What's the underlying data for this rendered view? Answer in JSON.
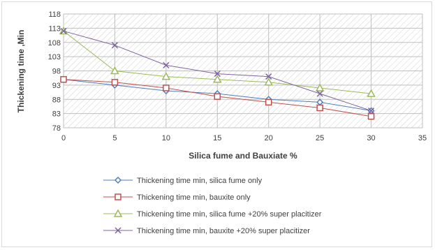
{
  "chart_data": {
    "type": "line",
    "title": "",
    "xlabel": "Silica fume and Bauxiate %",
    "ylabel": "Thickening time ,Min",
    "xlim": [
      0,
      35
    ],
    "ylim": [
      78,
      118
    ],
    "x_ticks": [
      "0",
      "5",
      "10",
      "15",
      "20",
      "25",
      "30",
      "35"
    ],
    "y_ticks": [
      "78",
      "83",
      "88",
      "93",
      "98",
      "103",
      "108",
      "113",
      "118"
    ],
    "grid": true,
    "legend_position": "bottom",
    "x": [
      0,
      5,
      10,
      15,
      20,
      25,
      30
    ],
    "series": [
      {
        "name": "Thickening time min, silica fume only",
        "values": [
          95,
          93,
          91,
          90,
          88,
          87,
          84
        ],
        "color": "#4e7fbf",
        "marker": "diamond"
      },
      {
        "name": "Thickening time min, bauxite only",
        "values": [
          95,
          94,
          92,
          89,
          87,
          85,
          82
        ],
        "color": "#c0504d",
        "marker": "square"
      },
      {
        "name": "Thickening time min, silica fume +20% super placitizer",
        "values": [
          112,
          98,
          96,
          95,
          94,
          92,
          90
        ],
        "color": "#9bbb59",
        "marker": "triangle"
      },
      {
        "name": "Thickening time min, bauxite +20% super placitizer",
        "values": [
          112,
          107,
          100,
          97,
          96,
          90,
          84
        ],
        "color": "#8064a2",
        "marker": "x"
      }
    ]
  }
}
